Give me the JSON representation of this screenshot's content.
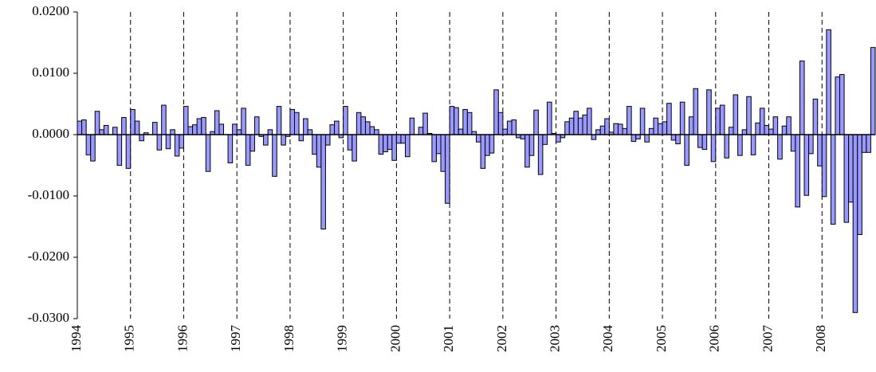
{
  "chart_data": {
    "type": "bar",
    "color": "#9999ff",
    "edge_color": "#000000",
    "ylim": [
      -0.03,
      0.02
    ],
    "yticks": [
      {
        "value": 0.02,
        "label": "0.0200"
      },
      {
        "value": 0.01,
        "label": "0.0100"
      },
      {
        "value": 0,
        "label": "0.0000"
      },
      {
        "value": -0.01,
        "label": "-0.0100"
      },
      {
        "value": -0.02,
        "label": "-0.0200"
      },
      {
        "value": -0.03,
        "label": "-0.0300"
      }
    ],
    "categories": [
      "1994",
      null,
      null,
      null,
      null,
      null,
      null,
      null,
      null,
      null,
      null,
      null,
      "1995",
      null,
      null,
      null,
      null,
      null,
      null,
      null,
      null,
      null,
      null,
      null,
      "1996",
      null,
      null,
      null,
      null,
      null,
      null,
      null,
      null,
      null,
      null,
      null,
      "1997",
      null,
      null,
      null,
      null,
      null,
      null,
      null,
      null,
      null,
      null,
      null,
      "1998",
      null,
      null,
      null,
      null,
      null,
      null,
      null,
      null,
      null,
      null,
      null,
      "1999",
      null,
      null,
      null,
      null,
      null,
      null,
      null,
      null,
      null,
      null,
      null,
      "2000",
      null,
      null,
      null,
      null,
      null,
      null,
      null,
      null,
      null,
      null,
      null,
      "2001",
      null,
      null,
      null,
      null,
      null,
      null,
      null,
      null,
      null,
      null,
      null,
      "2002",
      null,
      null,
      null,
      null,
      null,
      null,
      null,
      null,
      null,
      null,
      null,
      "2003",
      null,
      null,
      null,
      null,
      null,
      null,
      null,
      null,
      null,
      null,
      null,
      "2004",
      null,
      null,
      null,
      null,
      null,
      null,
      null,
      null,
      null,
      null,
      null,
      "2005",
      null,
      null,
      null,
      null,
      null,
      null,
      null,
      null,
      null,
      null,
      null,
      "2006",
      null,
      null,
      null,
      null,
      null,
      null,
      null,
      null,
      null,
      null,
      null,
      "2007",
      null,
      null,
      null,
      null,
      null,
      null,
      null,
      null,
      null,
      null,
      null,
      "2008",
      null,
      null,
      null,
      null,
      null,
      null,
      null,
      null,
      null,
      null,
      null
    ],
    "values": [
      0.0022,
      0.0024,
      -0.0033,
      -0.0043,
      0.0038,
      0.0008,
      0.0015,
      0,
      0.0012,
      -0.005,
      0.0028,
      -0.0055,
      0.0041,
      0.0022,
      -0.001,
      0.0003,
      0,
      0.002,
      -0.0025,
      0.0048,
      -0.0023,
      0.0008,
      -0.0035,
      -0.0022,
      0.0046,
      0.0013,
      0.0016,
      0.0026,
      0.0028,
      -0.006,
      0.0005,
      0.0039,
      0.0017,
      0,
      -0.0046,
      0.0017,
      0.0008,
      0.0043,
      -0.005,
      -0.0027,
      0.0029,
      -0.0003,
      -0.0017,
      0.0008,
      -0.0068,
      0.0046,
      -0.0017,
      -0.0003,
      0.0041,
      0.0036,
      -0.001,
      0.0026,
      0.0008,
      -0.0032,
      -0.0053,
      -0.0154,
      -0.0017,
      0.0016,
      0.0022,
      -0.0005,
      0.0046,
      -0.0025,
      -0.0043,
      0.0036,
      0.0029,
      0.0021,
      0.0013,
      0.0008,
      -0.0032,
      -0.0028,
      -0.0024,
      -0.0042,
      -0.0014,
      -0.0014,
      -0.0036,
      0.0027,
      0,
      0.0012,
      0.0035,
      0.0002,
      -0.0044,
      -0.0031,
      -0.006,
      -0.0112,
      0.0046,
      0.0044,
      0.0009,
      0.0041,
      0.0036,
      0.0005,
      -0.0012,
      -0.0055,
      -0.0034,
      -0.003,
      0.0073,
      0.0036,
      0.0009,
      0.0022,
      0.0024,
      -0.0005,
      -0.0007,
      -0.0053,
      -0.0034,
      0.004,
      -0.0065,
      -0.0016,
      0.0053,
      0.0002,
      -0.0012,
      -0.0005,
      0.0021,
      0.0027,
      0.0038,
      0.0027,
      0.0032,
      0.0043,
      -0.0008,
      0.0008,
      0.0014,
      0.0026,
      0.0004,
      0.0018,
      0.0017,
      0.001,
      0.0046,
      -0.0011,
      -0.0007,
      0.0043,
      -0.0012,
      0.001,
      0.0027,
      0.0018,
      0.0021,
      0.0051,
      -0.0009,
      -0.0015,
      0.0053,
      -0.005,
      0.0029,
      0.0075,
      -0.0021,
      -0.0024,
      0.0073,
      -0.0044,
      0.0043,
      0.0048,
      -0.0038,
      0.0012,
      0.0065,
      -0.0034,
      0.0008,
      0.0062,
      -0.0033,
      0.0019,
      0.0043,
      0.0015,
      0.0009,
      0.0029,
      -0.004,
      0.0014,
      0.0029,
      -0.0027,
      -0.0118,
      0.012,
      -0.0099,
      -0.0031,
      0.0058,
      -0.0051,
      -0.0101,
      0.0171,
      -0.0146,
      0.0094,
      0.0098,
      -0.0143,
      -0.011,
      -0.029,
      -0.0163,
      -0.0029,
      -0.0029,
      0.0142
    ]
  }
}
